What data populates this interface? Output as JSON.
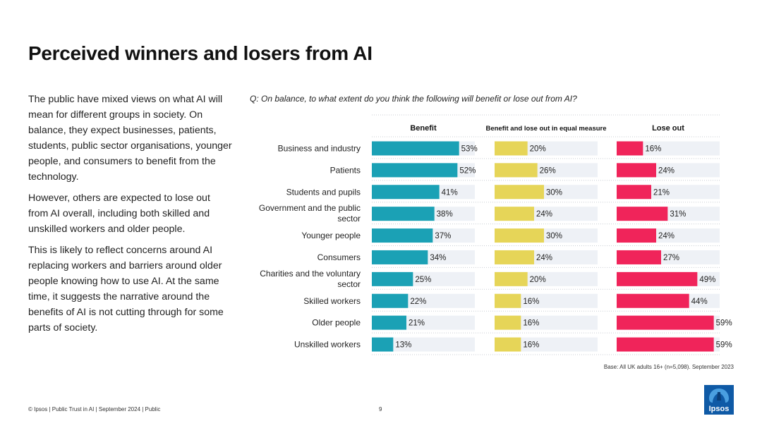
{
  "slide": {
    "title": "Perceived winners and losers from AI",
    "paragraphs": [
      "The public have mixed views on what AI will mean for different groups in society. On balance, they expect businesses, patients, students, public sector organisations, younger people, and consumers to benefit from the technology.",
      "However, others are expected to lose out from AI overall, including both skilled and unskilled workers and older people.",
      "This is likely to reflect concerns around AI replacing workers and barriers around older people knowing how to use AI. At the same time, it suggests the narrative around the benefits of AI is not cutting through for some parts of society."
    ],
    "question": "Q: On balance, to what extent do you think the following will benefit or lose out from AI?",
    "base_note": "Base: All UK adults 16+ (n=5,098). September 2023",
    "footer": "© Ipsos | Public Trust in AI | September 2024 | Public",
    "page_number": "9",
    "logo_text": "Ipsos"
  },
  "colors": {
    "benefit": "#1ba1b5",
    "equal": "#e6d558",
    "lose": "#f0245a",
    "track": "#eef1f6"
  },
  "chart_data": {
    "type": "bar",
    "title": "Q: On balance, to what extent do you think the following will benefit or lose out from AI?",
    "categories": [
      "Business and industry",
      "Patients",
      "Students and pupils",
      "Government and the public sector",
      "Younger people",
      "Consumers",
      "Charities and the voluntary sector",
      "Skilled workers",
      "Older people",
      "Unskilled workers"
    ],
    "series": [
      {
        "name": "Benefit",
        "values": [
          53,
          52,
          41,
          38,
          37,
          34,
          25,
          22,
          21,
          13
        ]
      },
      {
        "name": "Benefit and lose out in equal measure",
        "values": [
          20,
          26,
          30,
          24,
          30,
          24,
          20,
          16,
          16,
          16
        ]
      },
      {
        "name": "Lose out",
        "values": [
          16,
          24,
          21,
          31,
          24,
          27,
          49,
          44,
          59,
          59
        ]
      }
    ],
    "unit": "%",
    "ylim": [
      0,
      100
    ]
  }
}
